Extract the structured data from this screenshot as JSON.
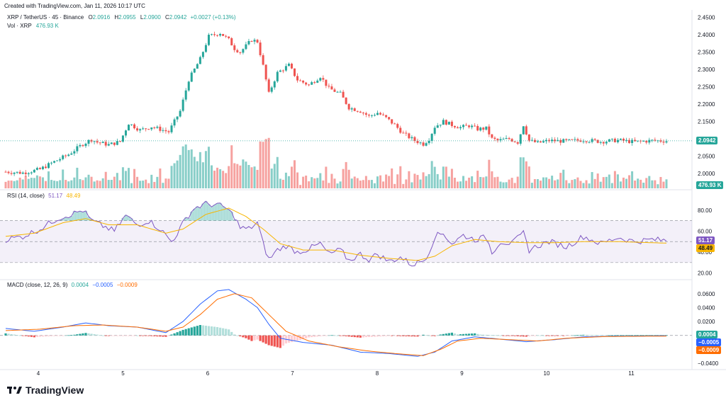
{
  "created_text": "Created with TradingView.com, Jan 11, 2026 10:17 UTC",
  "symbol": "XRP / TetherUS · 45 · Binance",
  "ohlc": {
    "o_label": "O",
    "o": "2.0916",
    "h_label": "H",
    "h": "2.0955",
    "l_label": "L",
    "l": "2.0900",
    "c_label": "C",
    "c": "2.0942",
    "change": "+0.0027 (+0.13%)"
  },
  "volume_label": "Vol · XRP",
  "volume_value": "476.93 K",
  "rsi_label": "RSI (14, close)",
  "rsi_value": "51.17",
  "rsi_ma_value": "48.49",
  "macd_label": "MACD (close, 12, 26, 9)",
  "macd_hist": "0.0004",
  "macd_line": "−0.0005",
  "macd_signal": "−0.0009",
  "price_badge": "2.0942",
  "volume_badge": "476.93 K",
  "rsi_badge": "51.17",
  "rsi_ma_badge": "48.49",
  "macd_hist_badge": "0.0004",
  "macd_line_badge": "−0.0005",
  "macd_signal_badge": "−0.0009",
  "logo_text": "TradingView",
  "colors": {
    "up": "#26a69a",
    "down": "#ef5350",
    "rsi": "#7e57c2",
    "rsi_ma": "#f7b500",
    "macd": "#2962ff",
    "signal": "#ff6d00"
  },
  "chart_data": {
    "type": "candlestick",
    "price_axis": {
      "ticks": [
        "2.4500",
        "2.4000",
        "2.3500",
        "2.3000",
        "2.2500",
        "2.2000",
        "2.1500",
        "2.1000",
        "2.0500",
        "2.0000"
      ],
      "ylim": [
        1.99,
        2.455
      ]
    },
    "time_axis": {
      "ticks": [
        "4",
        "5",
        "6",
        "7",
        "8",
        "9",
        "10",
        "11"
      ]
    },
    "rsi_axis": {
      "ticks": [
        "80.00",
        "60.00",
        "40.00",
        "20.00"
      ],
      "ylim": [
        15,
        88
      ],
      "band": [
        30,
        70
      ],
      "mid": 50
    },
    "macd_axis": {
      "ticks": [
        "0.0600",
        "0.0400",
        "0.0200",
        "0.0000",
        "−0.0400"
      ],
      "ylim": [
        -0.045,
        0.073
      ]
    },
    "anchors": [
      [
        0,
        2.005
      ],
      [
        6,
        2.002
      ],
      [
        12,
        2.012
      ],
      [
        16,
        2.03
      ],
      [
        22,
        2.055
      ],
      [
        27,
        2.085
      ],
      [
        30,
        2.098
      ],
      [
        32,
        2.09
      ],
      [
        36,
        2.083
      ],
      [
        40,
        2.092
      ],
      [
        43,
        2.145
      ],
      [
        47,
        2.125
      ],
      [
        51,
        2.135
      ],
      [
        55,
        2.125
      ],
      [
        57,
        2.12
      ],
      [
        61,
        2.18
      ],
      [
        64,
        2.27
      ],
      [
        68,
        2.33
      ],
      [
        71,
        2.395
      ],
      [
        75,
        2.405
      ],
      [
        78,
        2.385
      ],
      [
        80,
        2.36
      ],
      [
        82,
        2.35
      ],
      [
        86,
        2.385
      ],
      [
        88,
        2.38
      ],
      [
        90,
        2.31
      ],
      [
        92,
        2.23
      ],
      [
        95,
        2.29
      ],
      [
        99,
        2.312
      ],
      [
        102,
        2.27
      ],
      [
        106,
        2.255
      ],
      [
        110,
        2.28
      ],
      [
        113,
        2.245
      ],
      [
        117,
        2.23
      ],
      [
        120,
        2.19
      ],
      [
        124,
        2.18
      ],
      [
        127,
        2.165
      ],
      [
        130,
        2.175
      ],
      [
        133,
        2.16
      ],
      [
        136,
        2.14
      ],
      [
        139,
        2.115
      ],
      [
        143,
        2.095
      ],
      [
        146,
        2.085
      ],
      [
        148,
        2.1
      ],
      [
        150,
        2.135
      ],
      [
        153,
        2.15
      ],
      [
        156,
        2.14
      ],
      [
        159,
        2.133
      ],
      [
        162,
        2.138
      ],
      [
        165,
        2.128
      ],
      [
        168,
        2.13
      ],
      [
        170,
        2.1
      ],
      [
        172,
        2.095
      ],
      [
        176,
        2.1
      ],
      [
        179,
        2.09
      ],
      [
        181,
        2.14
      ],
      [
        183,
        2.095
      ],
      [
        186,
        2.088
      ],
      [
        190,
        2.095
      ],
      [
        196,
        2.093
      ],
      [
        202,
        2.097
      ],
      [
        208,
        2.092
      ],
      [
        214,
        2.096
      ],
      [
        220,
        2.091
      ],
      [
        226,
        2.095
      ],
      [
        231,
        2.094
      ]
    ],
    "rsi_anchors": [
      [
        0,
        52
      ],
      [
        6,
        55
      ],
      [
        12,
        62
      ],
      [
        18,
        72
      ],
      [
        24,
        77
      ],
      [
        27,
        80
      ],
      [
        30,
        70
      ],
      [
        34,
        65
      ],
      [
        38,
        60
      ],
      [
        42,
        75
      ],
      [
        46,
        66
      ],
      [
        50,
        70
      ],
      [
        54,
        62
      ],
      [
        58,
        50
      ],
      [
        60,
        58
      ],
      [
        63,
        72
      ],
      [
        66,
        82
      ],
      [
        70,
        86
      ],
      [
        74,
        85
      ],
      [
        77,
        82
      ],
      [
        80,
        74
      ],
      [
        82,
        63
      ],
      [
        85,
        62
      ],
      [
        88,
        68
      ],
      [
        90,
        48
      ],
      [
        92,
        33
      ],
      [
        95,
        42
      ],
      [
        98,
        46
      ],
      [
        102,
        40
      ],
      [
        106,
        43
      ],
      [
        110,
        48
      ],
      [
        113,
        38
      ],
      [
        117,
        42
      ],
      [
        120,
        32
      ],
      [
        124,
        38
      ],
      [
        127,
        33
      ],
      [
        130,
        38
      ],
      [
        134,
        31
      ],
      [
        138,
        35
      ],
      [
        142,
        28
      ],
      [
        146,
        32
      ],
      [
        148,
        40
      ],
      [
        150,
        55
      ],
      [
        153,
        58
      ],
      [
        156,
        48
      ],
      [
        160,
        56
      ],
      [
        164,
        52
      ],
      [
        168,
        54
      ],
      [
        170,
        40
      ],
      [
        173,
        50
      ],
      [
        177,
        48
      ],
      [
        181,
        58
      ],
      [
        183,
        42
      ],
      [
        186,
        46
      ],
      [
        190,
        50
      ],
      [
        196,
        45
      ],
      [
        202,
        55
      ],
      [
        208,
        48
      ],
      [
        214,
        54
      ],
      [
        220,
        50
      ],
      [
        226,
        52
      ],
      [
        231,
        51
      ]
    ],
    "rsi_ma_anchors": [
      [
        0,
        55
      ],
      [
        10,
        58
      ],
      [
        20,
        68
      ],
      [
        28,
        72
      ],
      [
        36,
        66
      ],
      [
        46,
        66
      ],
      [
        56,
        58
      ],
      [
        62,
        62
      ],
      [
        70,
        76
      ],
      [
        78,
        82
      ],
      [
        84,
        74
      ],
      [
        90,
        62
      ],
      [
        96,
        48
      ],
      [
        104,
        42
      ],
      [
        114,
        42
      ],
      [
        124,
        37
      ],
      [
        134,
        34
      ],
      [
        144,
        32
      ],
      [
        150,
        36
      ],
      [
        156,
        46
      ],
      [
        164,
        52
      ],
      [
        172,
        50
      ],
      [
        182,
        49
      ],
      [
        192,
        49
      ],
      [
        202,
        50
      ],
      [
        214,
        50
      ],
      [
        231,
        48.5
      ]
    ],
    "macd_anchors": [
      [
        0,
        0.01
      ],
      [
        10,
        0.006
      ],
      [
        20,
        0.012
      ],
      [
        28,
        0.018
      ],
      [
        36,
        0.014
      ],
      [
        46,
        0.012
      ],
      [
        56,
        0.004
      ],
      [
        62,
        0.02
      ],
      [
        68,
        0.045
      ],
      [
        74,
        0.064
      ],
      [
        78,
        0.066
      ],
      [
        84,
        0.052
      ],
      [
        88,
        0.04
      ],
      [
        92,
        0.016
      ],
      [
        96,
        -0.004
      ],
      [
        104,
        -0.01
      ],
      [
        114,
        -0.014
      ],
      [
        124,
        -0.024
      ],
      [
        134,
        -0.026
      ],
      [
        144,
        -0.03
      ],
      [
        150,
        -0.024
      ],
      [
        156,
        -0.008
      ],
      [
        164,
        -0.002
      ],
      [
        172,
        -0.005
      ],
      [
        182,
        -0.009
      ],
      [
        192,
        -0.006
      ],
      [
        202,
        -0.002
      ],
      [
        214,
        -0.001
      ],
      [
        231,
        -0.0005
      ]
    ],
    "signal_anchors": [
      [
        0,
        0.007
      ],
      [
        12,
        0.009
      ],
      [
        24,
        0.014
      ],
      [
        34,
        0.015
      ],
      [
        46,
        0.012
      ],
      [
        56,
        0.006
      ],
      [
        62,
        0.012
      ],
      [
        68,
        0.03
      ],
      [
        74,
        0.052
      ],
      [
        80,
        0.06
      ],
      [
        86,
        0.054
      ],
      [
        92,
        0.03
      ],
      [
        98,
        0.006
      ],
      [
        106,
        -0.008
      ],
      [
        116,
        -0.016
      ],
      [
        126,
        -0.022
      ],
      [
        136,
        -0.026
      ],
      [
        146,
        -0.029
      ],
      [
        152,
        -0.02
      ],
      [
        158,
        -0.008
      ],
      [
        166,
        -0.004
      ],
      [
        176,
        -0.006
      ],
      [
        186,
        -0.008
      ],
      [
        196,
        -0.004
      ],
      [
        210,
        -0.0015
      ],
      [
        231,
        -0.0009
      ]
    ]
  }
}
